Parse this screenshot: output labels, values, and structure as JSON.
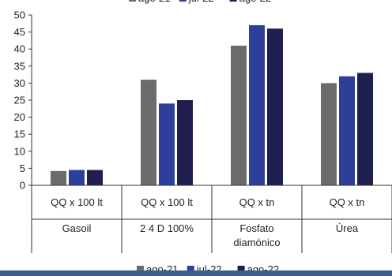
{
  "chart_data": {
    "type": "bar",
    "title": "",
    "xlabel": "",
    "ylabel": "",
    "ylim": [
      0,
      50
    ],
    "yticks": [
      0,
      5,
      10,
      15,
      20,
      25,
      30,
      35,
      40,
      45,
      50
    ],
    "grid": false,
    "legend_position": "bottom",
    "categories": [
      {
        "unit": "QQ x 100 lt",
        "name": "Gasoil"
      },
      {
        "unit": "QQ x 100 lt",
        "name": "2 4 D 100%"
      },
      {
        "unit": "QQ x tn",
        "name": "Fosfato diamónico"
      },
      {
        "unit": "QQ x tn",
        "name": "Úrea"
      }
    ],
    "series": [
      {
        "name": "ago-21",
        "color": "#6b6b6b",
        "values": [
          4.2,
          31,
          41,
          30
        ]
      },
      {
        "name": "jul-22",
        "color": "#2e3f9a",
        "values": [
          4.5,
          24,
          47,
          32
        ]
      },
      {
        "name": "ago-22",
        "color": "#1f1f4f",
        "values": [
          4.5,
          25,
          46,
          33
        ]
      }
    ]
  },
  "footer": {
    "color": "#3a5f8c"
  }
}
